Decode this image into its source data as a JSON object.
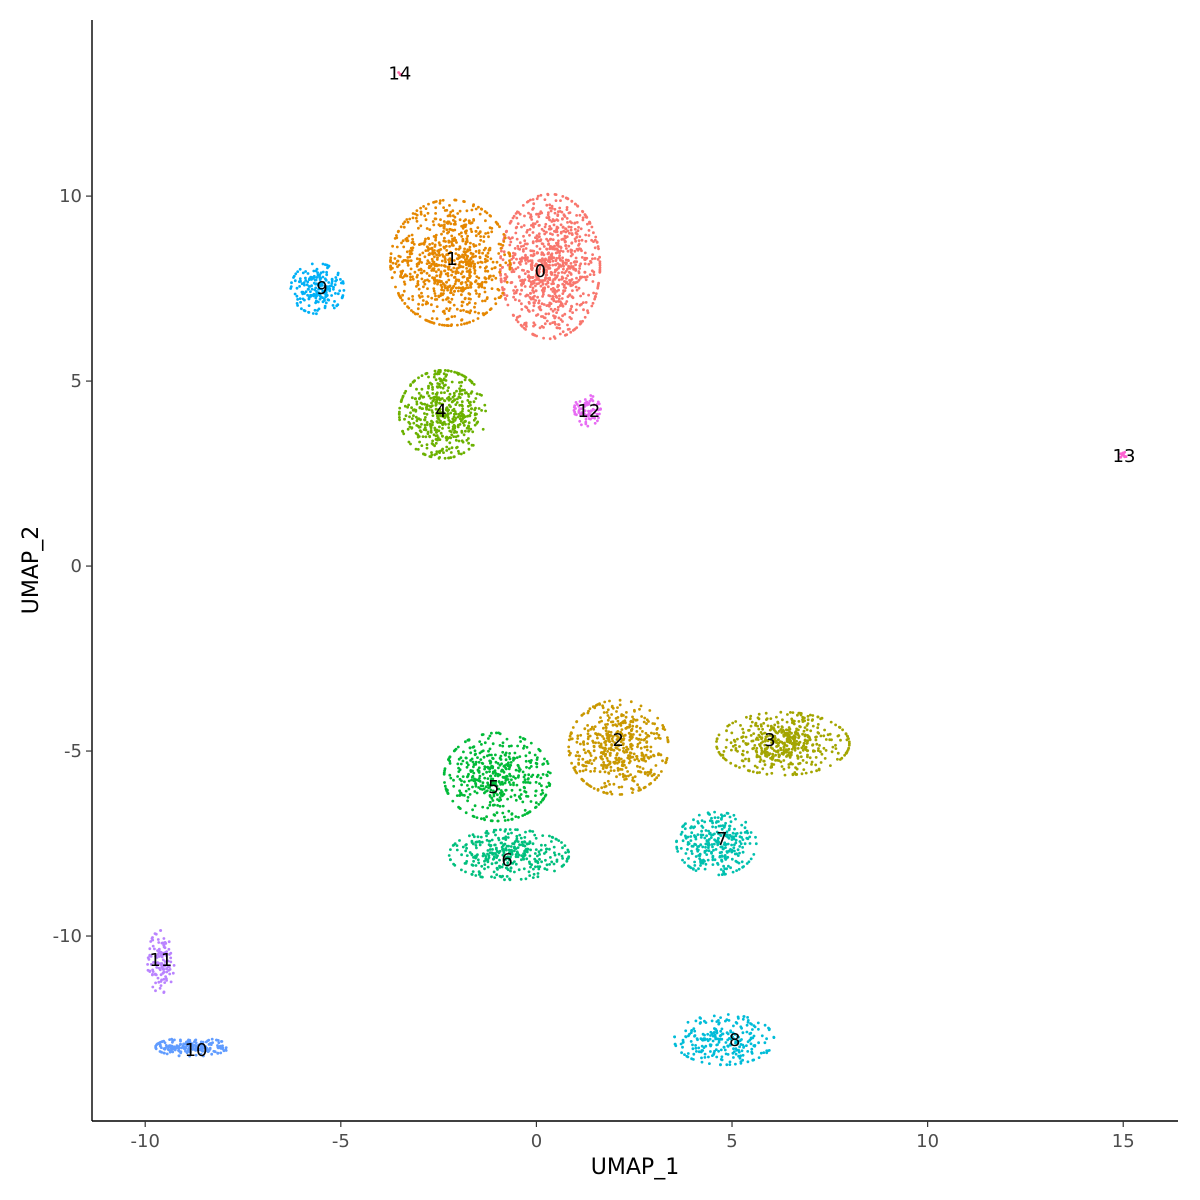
{
  "chart_data": {
    "type": "scatter",
    "title": "",
    "xlabel": "UMAP_1",
    "ylabel": "UMAP_2",
    "xlim": [
      -11.36,
      16.4
    ],
    "ylim": [
      -15.0,
      14.76
    ],
    "xticks": [
      -10,
      -5,
      0,
      5,
      10,
      15
    ],
    "yticks": [
      -10,
      -5,
      0,
      5,
      10
    ],
    "xtick_labels": [
      "-10",
      "-5",
      "0",
      "5",
      "10",
      "15"
    ],
    "ytick_labels": [
      "-10",
      "-5",
      "0",
      "5",
      "10"
    ],
    "grid": false,
    "legend": "none",
    "clusters": [
      {
        "label": "0",
        "color": "#F8766D",
        "label_pos": [
          0.1,
          7.97
        ],
        "center": [
          0.35,
          8.1
        ],
        "spread": [
          0.75,
          1.15
        ],
        "approx_points": 900
      },
      {
        "label": "1",
        "color": "#E58700",
        "label_pos": [
          -2.16,
          8.3
        ],
        "center": [
          -2.2,
          8.2
        ],
        "spread": [
          0.9,
          1.0
        ],
        "approx_points": 800
      },
      {
        "label": "2",
        "color": "#C99800",
        "label_pos": [
          2.09,
          -4.7
        ],
        "center": [
          2.1,
          -4.9
        ],
        "spread": [
          0.75,
          0.75
        ],
        "approx_points": 500
      },
      {
        "label": "3",
        "color": "#A3A500",
        "label_pos": [
          5.97,
          -4.7
        ],
        "center": [
          6.3,
          -4.8
        ],
        "spread": [
          1.0,
          0.5
        ],
        "approx_points": 500
      },
      {
        "label": "4",
        "color": "#6BB100",
        "label_pos": [
          -2.44,
          4.19
        ],
        "center": [
          -2.4,
          4.1
        ],
        "spread": [
          0.65,
          0.7
        ],
        "approx_points": 500
      },
      {
        "label": "5",
        "color": "#00BA38",
        "label_pos": [
          -1.09,
          -5.97
        ],
        "center": [
          -1.0,
          -5.7
        ],
        "spread": [
          0.8,
          0.7
        ],
        "approx_points": 450
      },
      {
        "label": "6",
        "color": "#00BF7D",
        "label_pos": [
          -0.75,
          -7.95
        ],
        "center": [
          -0.7,
          -7.8
        ],
        "spread": [
          0.9,
          0.4
        ],
        "approx_points": 350
      },
      {
        "label": "7",
        "color": "#00C0AF",
        "label_pos": [
          4.74,
          -7.38
        ],
        "center": [
          4.6,
          -7.5
        ],
        "spread": [
          0.6,
          0.5
        ],
        "approx_points": 300
      },
      {
        "label": "8",
        "color": "#00BCD8",
        "label_pos": [
          5.07,
          -12.81
        ],
        "center": [
          4.8,
          -12.8
        ],
        "spread": [
          0.75,
          0.4
        ],
        "approx_points": 250
      },
      {
        "label": "9",
        "color": "#00B0F6",
        "label_pos": [
          -5.48,
          7.51
        ],
        "center": [
          -5.6,
          7.5
        ],
        "spread": [
          0.4,
          0.4
        ],
        "approx_points": 200
      },
      {
        "label": "10",
        "color": "#619CFF",
        "label_pos": [
          -8.7,
          -13.08
        ],
        "center": [
          -8.8,
          -13.0
        ],
        "spread": [
          0.55,
          0.15
        ],
        "approx_points": 200
      },
      {
        "label": "11",
        "color": "#B983FF",
        "label_pos": [
          -9.6,
          -10.65
        ],
        "center": [
          -9.6,
          -10.7
        ],
        "spread": [
          0.2,
          0.5
        ],
        "approx_points": 120
      },
      {
        "label": "12",
        "color": "#E76BF3",
        "label_pos": [
          1.34,
          4.19
        ],
        "center": [
          1.3,
          4.2
        ],
        "spread": [
          0.2,
          0.25
        ],
        "approx_points": 80
      },
      {
        "label": "13",
        "color": "#FD61D1",
        "label_pos": [
          15.02,
          2.97
        ],
        "center": [
          15.0,
          3.0
        ],
        "spread": [
          0.05,
          0.05
        ],
        "approx_points": 10
      },
      {
        "label": "14",
        "color": "#FF67A4",
        "label_pos": [
          -3.49,
          13.32
        ],
        "center": [
          -3.5,
          13.3
        ],
        "spread": [
          0.03,
          0.03
        ],
        "approx_points": 3
      }
    ]
  }
}
